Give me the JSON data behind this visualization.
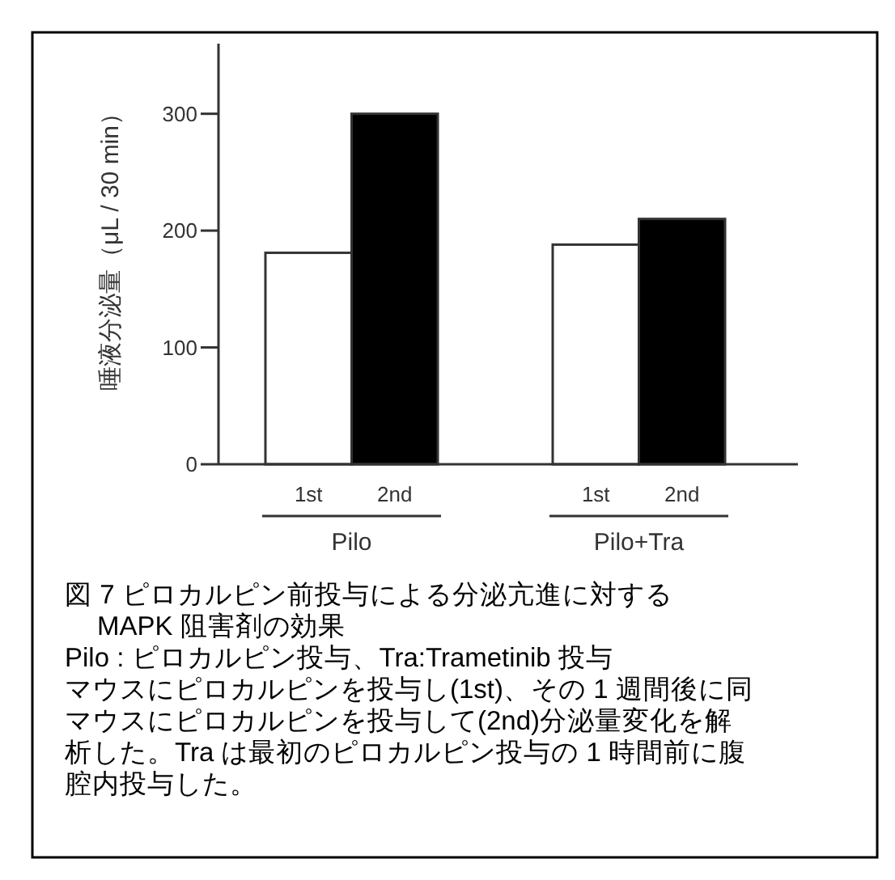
{
  "chart_data": {
    "type": "bar",
    "ylabel": "唾液分泌量（μL / 30 min）",
    "categories": [
      "Pilo",
      "Pilo+Tra"
    ],
    "series": [
      {
        "name": "1st",
        "color": "#ffffff",
        "values": [
          181,
          188
        ]
      },
      {
        "name": "2nd",
        "color": "#000000",
        "values": [
          300,
          210
        ]
      }
    ],
    "ylim": [
      0,
      360
    ],
    "yticks": [
      0,
      100,
      200,
      300
    ],
    "grid": false,
    "annotations": [
      "図 7  ピロカルピン前投与による分泌亢進に対する",
      "MAPK 阻害剤の効果",
      "Pilo : ピロカルピン投与、Tra:Trametinib 投与",
      "マウスにピロカルピンを投与し(1st)、その 1 週間後に同",
      "マウスにピロカルピンを投与して(2nd)分泌量変化を解",
      "析した。Tra は最初のピロカルピン投与の 1 時間前に腹",
      "腔内投与した。"
    ]
  }
}
